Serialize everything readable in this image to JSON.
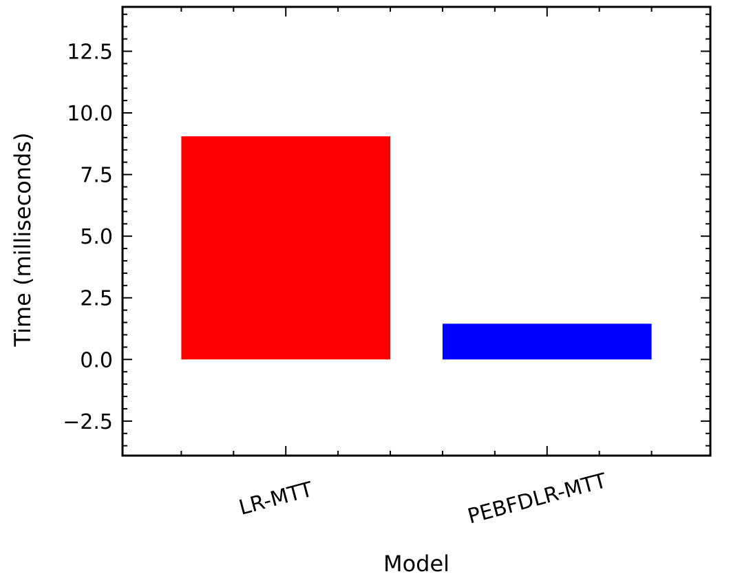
{
  "chart_data": {
    "type": "bar",
    "categories": [
      "LR-MTT",
      "PEBFDLR-MTT"
    ],
    "values": [
      9.05,
      1.45
    ],
    "colors": [
      "#ff0000",
      "#0000ff"
    ],
    "xlabel": "Model",
    "ylabel": "Time (milliseconds)",
    "ylim": [
      -3.9,
      14.3
    ],
    "yticks": [
      -2.5,
      0.0,
      2.5,
      5.0,
      7.5,
      10.0,
      12.5
    ],
    "ytick_labels": [
      "−2.5",
      "0.0",
      "2.5",
      "5.0",
      "7.5",
      "10.0",
      "12.5"
    ],
    "y_minor_step": 0.5,
    "grid": false,
    "legend": "none"
  }
}
